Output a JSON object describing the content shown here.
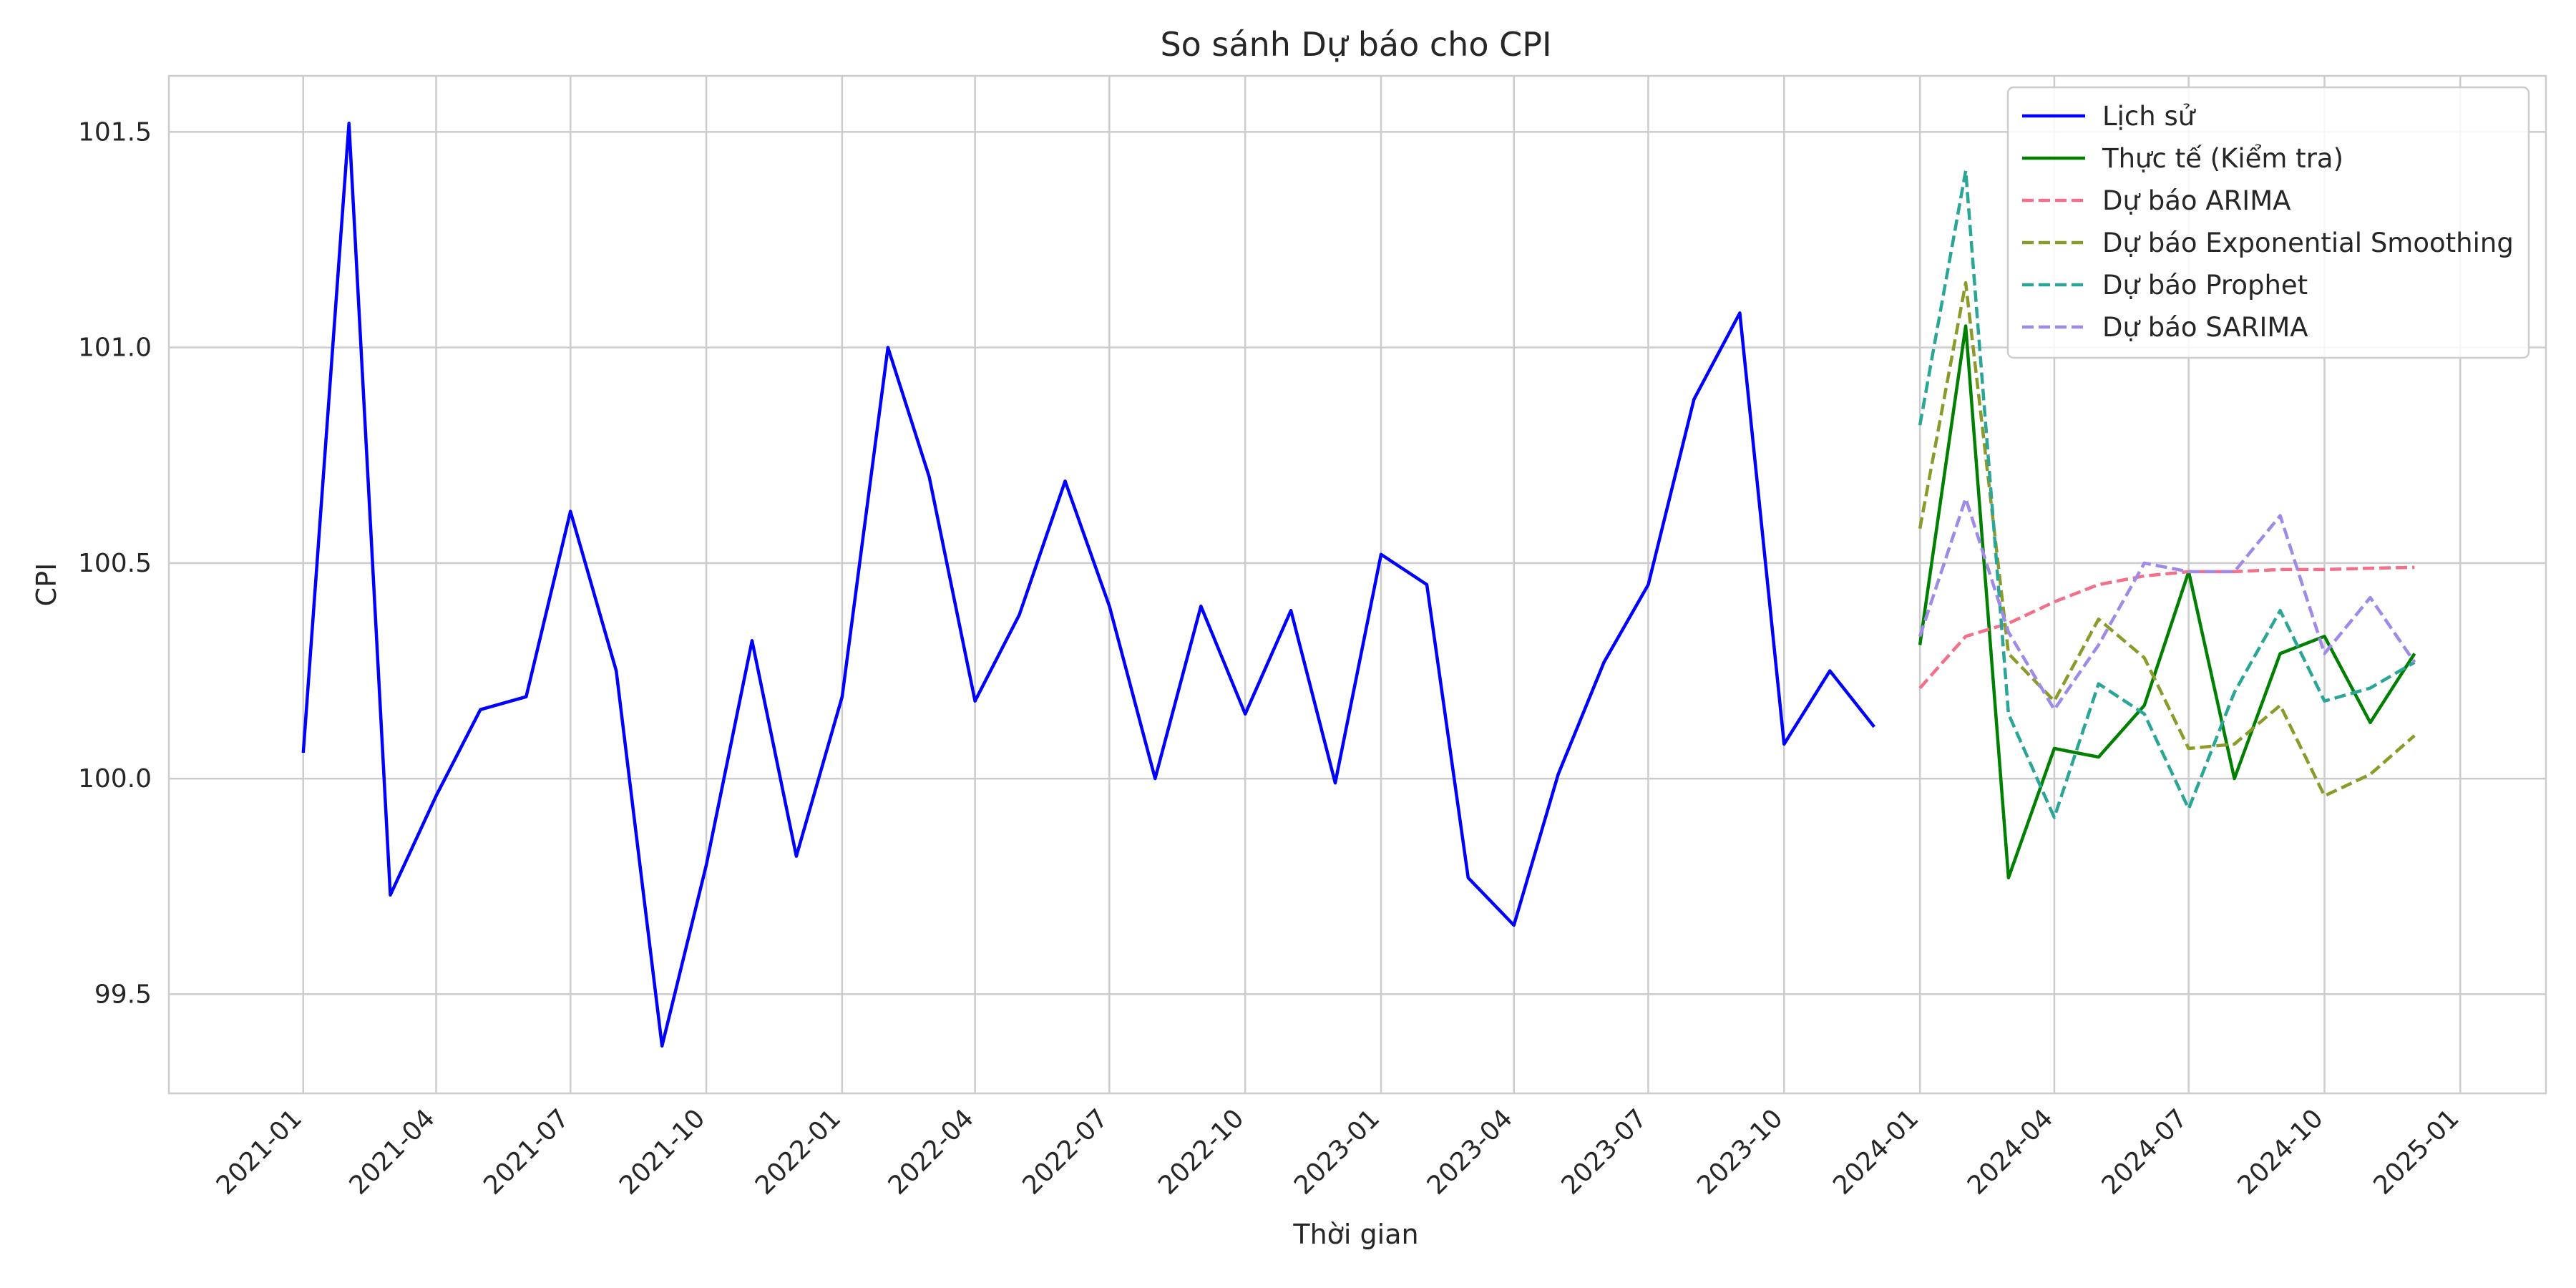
{
  "chart_data": {
    "type": "line",
    "title": "So sánh Dự báo cho CPI",
    "xlabel": "Thời gian",
    "ylabel": "CPI",
    "xlim": [
      "2020-10-02",
      "2025-02-28"
    ],
    "ylim": [
      99.27,
      101.63
    ],
    "grid": true,
    "legend_position": "top-right",
    "x_ticks": [
      "2021-01-01",
      "2021-04-01",
      "2021-07-01",
      "2021-10-01",
      "2022-01-01",
      "2022-04-01",
      "2022-07-01",
      "2022-10-01",
      "2023-01-01",
      "2023-04-01",
      "2023-07-01",
      "2023-10-01",
      "2024-01-01",
      "2024-04-01",
      "2024-07-01",
      "2024-10-01",
      "2025-01-01"
    ],
    "x_tick_labels": [
      "2021-01",
      "2021-04",
      "2021-07",
      "2021-10",
      "2022-01",
      "2022-04",
      "2022-07",
      "2022-10",
      "2023-01",
      "2023-04",
      "2023-07",
      "2023-10",
      "2024-01",
      "2024-04",
      "2024-07",
      "2024-10",
      "2025-01"
    ],
    "y_ticks": [
      99.5,
      100.0,
      100.5,
      101.0,
      101.5
    ],
    "y_tick_labels": [
      "99.5",
      "100.0",
      "100.5",
      "101.0",
      "101.5"
    ],
    "series": [
      {
        "name": "Lịch sử",
        "color": "#0000ff",
        "style": "solid",
        "x": [
          "2021-01-01",
          "2021-02-01",
          "2021-03-01",
          "2021-04-01",
          "2021-05-01",
          "2021-06-01",
          "2021-07-01",
          "2021-08-01",
          "2021-09-01",
          "2021-10-01",
          "2021-11-01",
          "2021-12-01",
          "2022-01-01",
          "2022-02-01",
          "2022-03-01",
          "2022-04-01",
          "2022-05-01",
          "2022-06-01",
          "2022-07-01",
          "2022-08-01",
          "2022-09-01",
          "2022-10-01",
          "2022-11-01",
          "2022-12-01",
          "2023-01-01",
          "2023-02-01",
          "2023-03-01",
          "2023-04-01",
          "2023-05-01",
          "2023-06-01",
          "2023-07-01",
          "2023-08-01",
          "2023-09-01",
          "2023-10-01",
          "2023-11-01",
          "2023-12-01"
        ],
        "values": [
          100.06,
          101.52,
          99.73,
          99.96,
          100.16,
          100.19,
          100.62,
          100.25,
          99.38,
          99.8,
          100.32,
          99.82,
          100.19,
          101.0,
          100.7,
          100.18,
          100.38,
          100.69,
          100.4,
          100.0,
          100.4,
          100.15,
          100.39,
          99.99,
          100.52,
          100.45,
          99.77,
          99.66,
          100.01,
          100.27,
          100.45,
          100.88,
          101.08,
          100.08,
          100.25,
          100.12
        ]
      },
      {
        "name": "Thực tế (Kiểm tra)",
        "color": "#008000",
        "style": "solid",
        "x": [
          "2024-01-01",
          "2024-02-01",
          "2024-03-01",
          "2024-04-01",
          "2024-05-01",
          "2024-06-01",
          "2024-07-01",
          "2024-08-01",
          "2024-09-01",
          "2024-10-01",
          "2024-11-01",
          "2024-12-01"
        ],
        "values": [
          100.31,
          101.05,
          99.77,
          100.07,
          100.05,
          100.17,
          100.48,
          100.0,
          100.29,
          100.33,
          100.13,
          100.29
        ]
      },
      {
        "name": "Dự báo ARIMA",
        "color": "#f2708a",
        "style": "dashed",
        "x": [
          "2024-01-01",
          "2024-02-01",
          "2024-03-01",
          "2024-04-01",
          "2024-05-01",
          "2024-06-01",
          "2024-07-01",
          "2024-08-01",
          "2024-09-01",
          "2024-10-01",
          "2024-11-01",
          "2024-12-01"
        ],
        "values": [
          100.21,
          100.33,
          100.36,
          100.41,
          100.45,
          100.47,
          100.48,
          100.48,
          100.485,
          100.485,
          100.488,
          100.49
        ]
      },
      {
        "name": "Dự báo Exponential Smoothing",
        "color": "#8c9a2a",
        "style": "dashed",
        "x": [
          "2024-01-01",
          "2024-02-01",
          "2024-03-01",
          "2024-04-01",
          "2024-05-01",
          "2024-06-01",
          "2024-07-01",
          "2024-08-01",
          "2024-09-01",
          "2024-10-01",
          "2024-11-01",
          "2024-12-01"
        ],
        "values": [
          100.58,
          101.15,
          100.29,
          100.18,
          100.37,
          100.28,
          100.07,
          100.08,
          100.17,
          99.96,
          100.01,
          100.1
        ]
      },
      {
        "name": "Dự báo Prophet",
        "color": "#2aa697",
        "style": "dashed",
        "x": [
          "2024-01-01",
          "2024-02-01",
          "2024-03-01",
          "2024-04-01",
          "2024-05-01",
          "2024-06-01",
          "2024-07-01",
          "2024-08-01",
          "2024-09-01",
          "2024-10-01",
          "2024-11-01",
          "2024-12-01"
        ],
        "values": [
          100.82,
          101.41,
          100.15,
          99.91,
          100.22,
          100.15,
          99.93,
          100.2,
          100.39,
          100.18,
          100.21,
          100.27
        ]
      },
      {
        "name": "Dự báo SARIMA",
        "color": "#a08ae8",
        "style": "dashed",
        "x": [
          "2024-01-01",
          "2024-02-01",
          "2024-03-01",
          "2024-04-01",
          "2024-05-01",
          "2024-06-01",
          "2024-07-01",
          "2024-08-01",
          "2024-09-01",
          "2024-10-01",
          "2024-11-01",
          "2024-12-01"
        ],
        "values": [
          100.33,
          100.65,
          100.34,
          100.16,
          100.31,
          100.5,
          100.48,
          100.48,
          100.61,
          100.29,
          100.42,
          100.27
        ]
      }
    ]
  }
}
